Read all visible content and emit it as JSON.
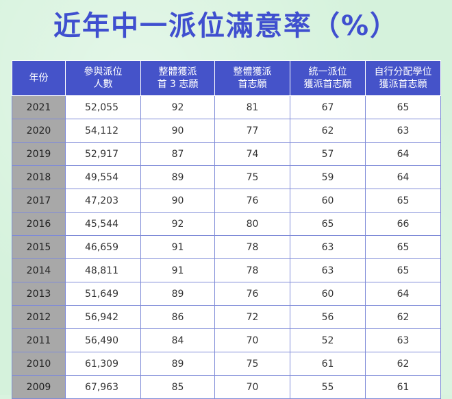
{
  "title": "近年中一派位滿意率（%）",
  "chart_data": {
    "type": "table",
    "columns": [
      [
        "年份"
      ],
      [
        "參與派位",
        "人數"
      ],
      [
        "整體獲派",
        "首 3 志願"
      ],
      [
        "整體獲派",
        "首志願"
      ],
      [
        "統一派位",
        "獲派首志願"
      ],
      [
        "自行分配學位",
        "獲派首志願"
      ]
    ],
    "rows": [
      [
        "2021",
        "52,055",
        "92",
        "81",
        "67",
        "65"
      ],
      [
        "2020",
        "54,112",
        "90",
        "77",
        "62",
        "63"
      ],
      [
        "2019",
        "52,917",
        "87",
        "74",
        "57",
        "64"
      ],
      [
        "2018",
        "49,554",
        "89",
        "75",
        "59",
        "64"
      ],
      [
        "2017",
        "47,203",
        "90",
        "76",
        "60",
        "65"
      ],
      [
        "2016",
        "45,544",
        "92",
        "80",
        "65",
        "66"
      ],
      [
        "2015",
        "46,659",
        "91",
        "78",
        "63",
        "65"
      ],
      [
        "2014",
        "48,811",
        "91",
        "78",
        "63",
        "65"
      ],
      [
        "2013",
        "51,649",
        "89",
        "76",
        "60",
        "64"
      ],
      [
        "2012",
        "56,942",
        "86",
        "72",
        "56",
        "62"
      ],
      [
        "2011",
        "56,490",
        "84",
        "70",
        "52",
        "63"
      ],
      [
        "2010",
        "61,309",
        "89",
        "75",
        "61",
        "62"
      ],
      [
        "2009",
        "67,963",
        "85",
        "70",
        "55",
        "61"
      ]
    ]
  },
  "colors": {
    "title": "#3f4fcf",
    "header_bg": "#4553c9",
    "year_bg": "#a8a8a8",
    "page_bg": "#d5f2dc"
  }
}
